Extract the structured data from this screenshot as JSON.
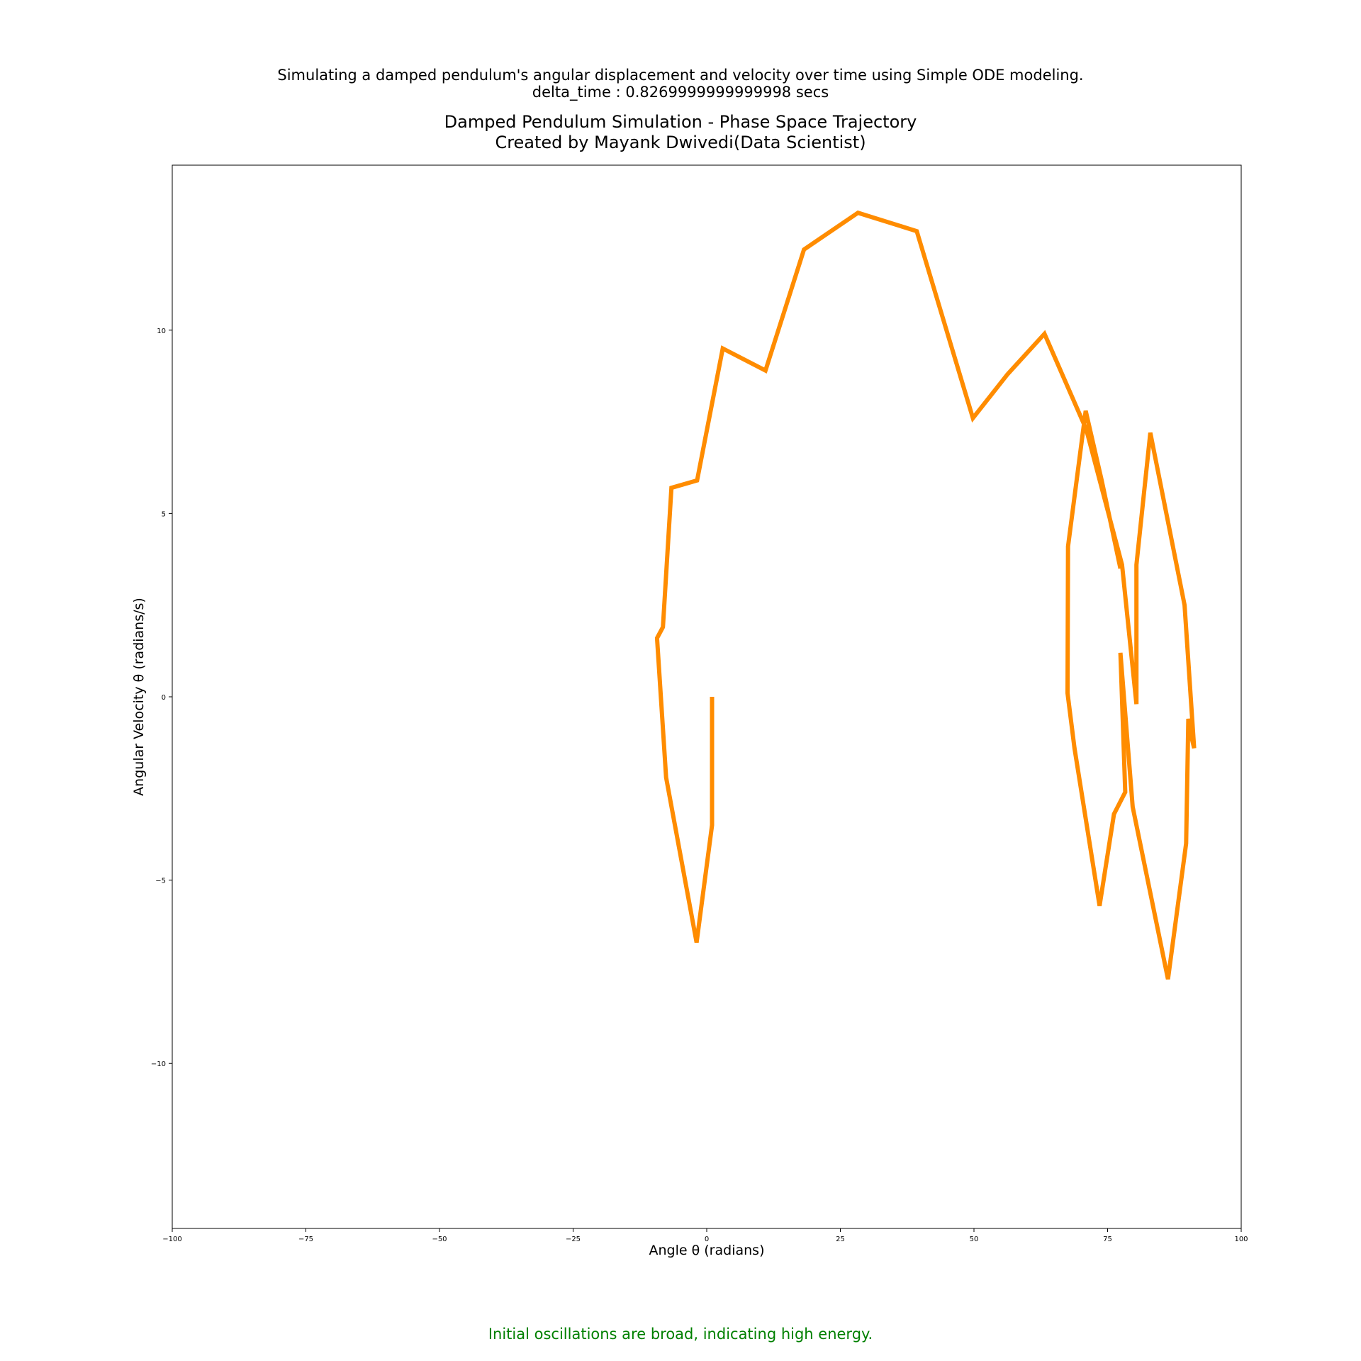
{
  "figure": {
    "suptitle_line1": "Simulating a damped pendulum's angular displacement and velocity over time using Simple ODE modeling.",
    "suptitle_line2": "delta_time : 0.8269999999999998 secs",
    "title_line1": "Damped Pendulum Simulation - Phase Space Trajectory",
    "title_line2": "Created by Mayank Dwivedi(Data Scientist)",
    "annotation": "Initial oscillations are broad, indicating high energy.",
    "annotation_color": "#008000"
  },
  "chart_data": {
    "type": "line",
    "title": "Damped Pendulum Simulation - Phase Space Trajectory\nCreated by Mayank Dwivedi(Data Scientist)",
    "xlabel": "Angle θ (radians)",
    "ylabel": "Angular Velocity θ (radians/s)",
    "xlim": [
      -100,
      100
    ],
    "ylim": [
      -14.5,
      14.5
    ],
    "x_ticks": [
      -100,
      -75,
      -50,
      -25,
      0,
      25,
      50,
      75,
      100
    ],
    "x_tick_labels": [
      "−100",
      "−75",
      "−50",
      "−25",
      "0",
      "25",
      "50",
      "75",
      "100"
    ],
    "y_ticks": [
      -10,
      -5,
      0,
      5,
      10
    ],
    "y_tick_labels": [
      "−10",
      "−5",
      "0",
      "5",
      "10"
    ],
    "grid": false,
    "series": [
      {
        "color": "#ff8c00",
        "x": [
          1,
          1,
          -1.9,
          -7.6,
          -9.3,
          -8.2,
          -6.6,
          -1.8,
          3,
          11,
          18.2,
          28.3,
          39.3,
          49.8,
          56.3,
          63.2,
          71,
          77.7,
          80.4,
          80.4,
          83,
          89.4,
          91.2,
          90.7,
          90.1,
          89.7,
          86.3,
          79.7,
          77.4,
          78.3,
          76.2,
          73.5,
          68.8,
          67.5,
          67.6,
          70.9,
          73.9,
          77.4
        ],
        "y": [
          0,
          -3.5,
          -6.7,
          -2.2,
          1.6,
          1.9,
          5.7,
          5.9,
          9.5,
          8.9,
          12.2,
          13.2,
          12.7,
          7.6,
          8.8,
          9.9,
          7.3,
          3.6,
          -0.2,
          3.6,
          7.2,
          2.5,
          -1.4,
          -1.1,
          -0.6,
          -4,
          -7.7,
          -3,
          1.2,
          -2.6,
          -3.2,
          -5.7,
          -1.4,
          0.1,
          4.1,
          7.8,
          5.9,
          3.5
        ]
      }
    ]
  }
}
